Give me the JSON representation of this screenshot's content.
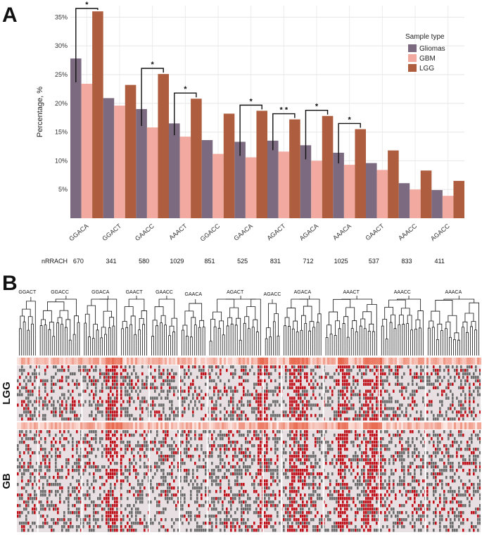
{
  "panels": {
    "a_label": "A",
    "b_label": "B"
  },
  "chart_data": [
    {
      "type": "bar",
      "title": "",
      "xlabel": "",
      "ylabel": "Percentage, %",
      "ylim": [
        0,
        37
      ],
      "grid": true,
      "legend_title": "Sample type",
      "legend_position": "top-right",
      "categories": [
        "GGACA",
        "GGACT",
        "GAACC",
        "AAACT",
        "GGACC",
        "GAACA",
        "AGACT",
        "AGACA",
        "AAACA",
        "GAACT",
        "AAACC",
        "AGACC"
      ],
      "yticks": [
        5,
        10,
        15,
        20,
        25,
        30,
        35
      ],
      "ytick_labels": [
        "5%",
        "10%",
        "15%",
        "20%",
        "25%",
        "30%",
        "35%"
      ],
      "series": [
        {
          "name": "Gliomas",
          "color": "#7b6a80",
          "values": [
            27.8,
            20.9,
            19.0,
            16.5,
            13.6,
            13.3,
            13.5,
            12.7,
            11.4,
            9.6,
            6.1,
            4.9
          ]
        },
        {
          "name": "GBM",
          "color": "#f2aaa0",
          "values": [
            23.4,
            19.6,
            15.8,
            14.2,
            11.2,
            10.6,
            11.6,
            10.0,
            9.3,
            8.4,
            5.0,
            3.9
          ]
        },
        {
          "name": "LGG",
          "color": "#ae5d3e",
          "values": [
            36.0,
            23.2,
            25.1,
            20.8,
            18.2,
            18.7,
            17.2,
            17.8,
            15.5,
            11.8,
            8.3,
            6.5
          ]
        }
      ],
      "significance": [
        {
          "category": "GGACA",
          "label": "*"
        },
        {
          "category": "GAACC",
          "label": "*"
        },
        {
          "category": "AAACT",
          "label": "*"
        },
        {
          "category": "GAACA",
          "label": "*"
        },
        {
          "category": "AGACT",
          "label": "* *"
        },
        {
          "category": "AGACA",
          "label": "*"
        },
        {
          "category": "AAACA",
          "label": "*"
        }
      ],
      "nrrach_label": "nRRACH",
      "nrrach": [
        670,
        341,
        580,
        1029,
        851,
        525,
        831,
        712,
        1025,
        537,
        833,
        411
      ]
    },
    {
      "type": "heatmap",
      "title": "",
      "dendrogram_clusters": [
        "GGACT",
        "GGACC",
        "GGACA",
        "GAACT",
        "GAACC",
        "GAACA",
        "AGACT",
        "AGACC",
        "AGACA",
        "AAACT",
        "AAACC",
        "AAACA"
      ],
      "row_groups": [
        "LGG",
        "GB"
      ],
      "colors": {
        "present": "#c0111a",
        "other": "#6b6b6b",
        "background": "#e7dfe2",
        "annotation": "#e8654a"
      }
    }
  ]
}
